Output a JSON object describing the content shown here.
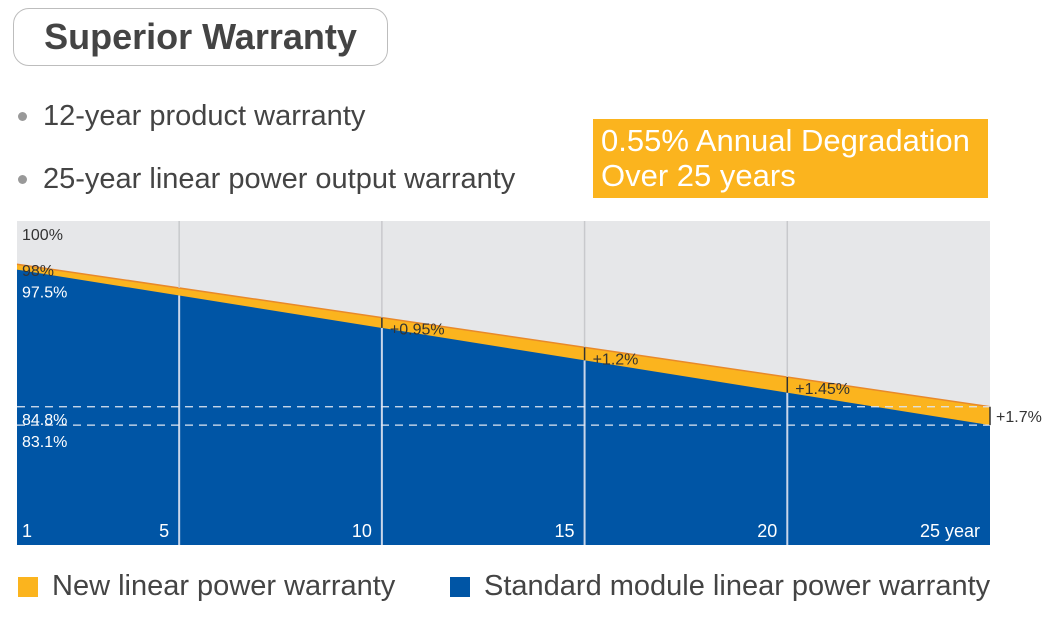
{
  "title": "Superior Warranty",
  "bullets": [
    "12-year product warranty",
    "25-year linear power output warranty"
  ],
  "callout": {
    "line1": "0.55% Annual Degradation",
    "line2": "Over 25 years"
  },
  "colors": {
    "new": "#fbb41e",
    "standard": "#0055a5",
    "background": "#e6e7e9"
  },
  "chart_data": {
    "type": "area",
    "x": [
      1,
      25
    ],
    "x_ticks": [
      "1",
      "5",
      "10",
      "15",
      "20",
      "25 year"
    ],
    "x_tick_values": [
      1,
      5,
      10,
      15,
      20,
      25
    ],
    "ylim": [
      72,
      102
    ],
    "y_labels": [
      {
        "value": 100,
        "text": "100%"
      },
      {
        "value": 98,
        "text": "98%"
      },
      {
        "value": 97.5,
        "text": "97.5%"
      },
      {
        "value": 84.8,
        "text": "84.8%"
      },
      {
        "value": 83.1,
        "text": "83.1%"
      }
    ],
    "series": [
      {
        "name": "New linear power warranty",
        "x": [
          1,
          25
        ],
        "values": [
          98,
          84.8
        ]
      },
      {
        "name": "Standard module linear power warranty",
        "x": [
          1,
          25
        ],
        "values": [
          97.5,
          83.1
        ]
      }
    ],
    "annotations": [
      {
        "x": 10,
        "text": "+0.95%"
      },
      {
        "x": 15,
        "text": "+1.2%"
      },
      {
        "x": 20,
        "text": "+1.45%"
      },
      {
        "x": 25,
        "text": "+1.7%"
      }
    ],
    "grid": true,
    "legend_placement": "bottom"
  }
}
